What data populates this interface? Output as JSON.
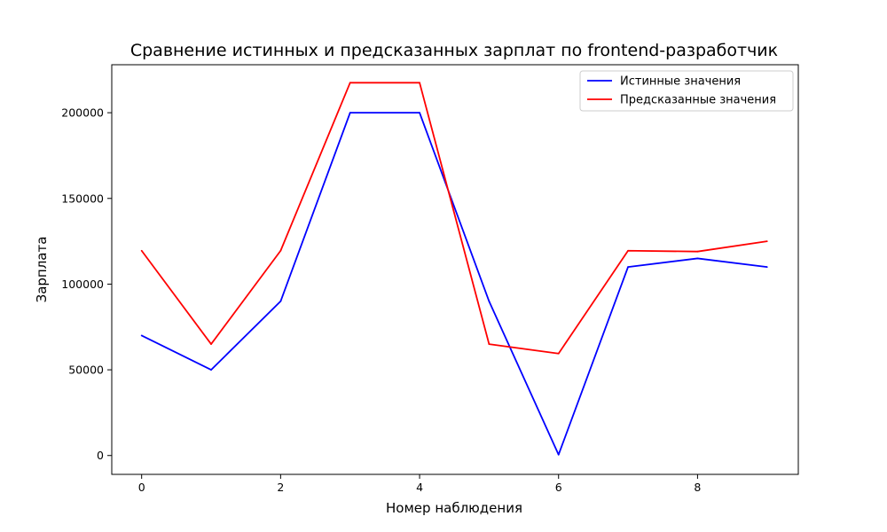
{
  "chart_data": {
    "type": "line",
    "title": "Сравнение истинных и предсказанных зарплат по frontend-разработчик",
    "xlabel": "Номер наблюдения",
    "ylabel": "Зарплата",
    "x": [
      0,
      1,
      2,
      3,
      4,
      5,
      6,
      7,
      8,
      9
    ],
    "xlim": [
      -0.43,
      9.45
    ],
    "ylim": [
      -11000,
      228000
    ],
    "xticks": [
      0,
      2,
      4,
      6,
      8
    ],
    "yticks": [
      0,
      50000,
      100000,
      150000,
      200000
    ],
    "grid": false,
    "legend_position": "top-right",
    "series": [
      {
        "name": "Истинные значения",
        "color": "#0000ff",
        "values": [
          70000,
          50000,
          90000,
          200000,
          200000,
          90000,
          500,
          110000,
          115000,
          110000
        ]
      },
      {
        "name": "Предсказанные значения",
        "color": "#ff0000",
        "values": [
          119500,
          65000,
          119500,
          217500,
          217500,
          65000,
          59500,
          119500,
          119000,
          125000
        ]
      }
    ]
  }
}
